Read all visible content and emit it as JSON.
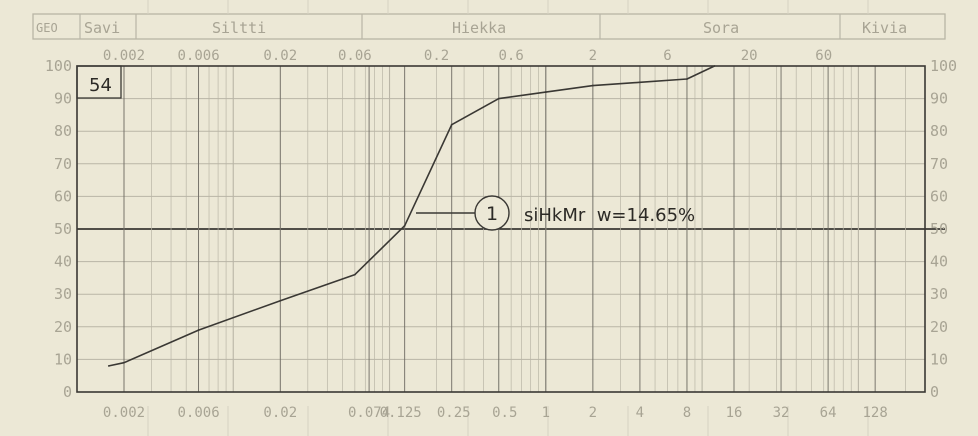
{
  "header": {
    "geo_label": "GEO",
    "soil_classes": [
      "Savi",
      "Siltti",
      "Hiekka",
      "Sora",
      "Kivia"
    ],
    "top_ticks": [
      "0.002",
      "0.006",
      "0.02",
      "0.06",
      "0.2",
      "0.6",
      "2",
      "6",
      "20",
      "60"
    ]
  },
  "chart_data": {
    "type": "line",
    "sample_number": "54",
    "x_scale": "log",
    "x_tick_labels": [
      "0.002",
      "0.006",
      "0.02",
      "0.074",
      "0.125",
      "0.25",
      "0.5",
      "1",
      "2",
      "4",
      "8",
      "16",
      "32",
      "64",
      "128"
    ],
    "y_ticks": [
      "0",
      "10",
      "20",
      "30",
      "40",
      "50",
      "60",
      "70",
      "80",
      "90",
      "100"
    ],
    "ylim": [
      0,
      100
    ],
    "grid": true,
    "reference_line_y": 50,
    "series": [
      {
        "label_number": "1",
        "label_text": "siHkMr  w=14.65%",
        "x": [
          0.0016,
          0.002,
          0.006,
          0.02,
          0.06,
          0.125,
          0.25,
          0.5,
          1,
          2,
          4,
          8,
          12
        ],
        "y": [
          8,
          9,
          19,
          28,
          36,
          51,
          82,
          90,
          92,
          94,
          95,
          96,
          100
        ]
      }
    ]
  },
  "colors": {
    "paper": "#ece8d6",
    "grid_printed": "#b9b5a6",
    "ink": "#3a3834"
  }
}
